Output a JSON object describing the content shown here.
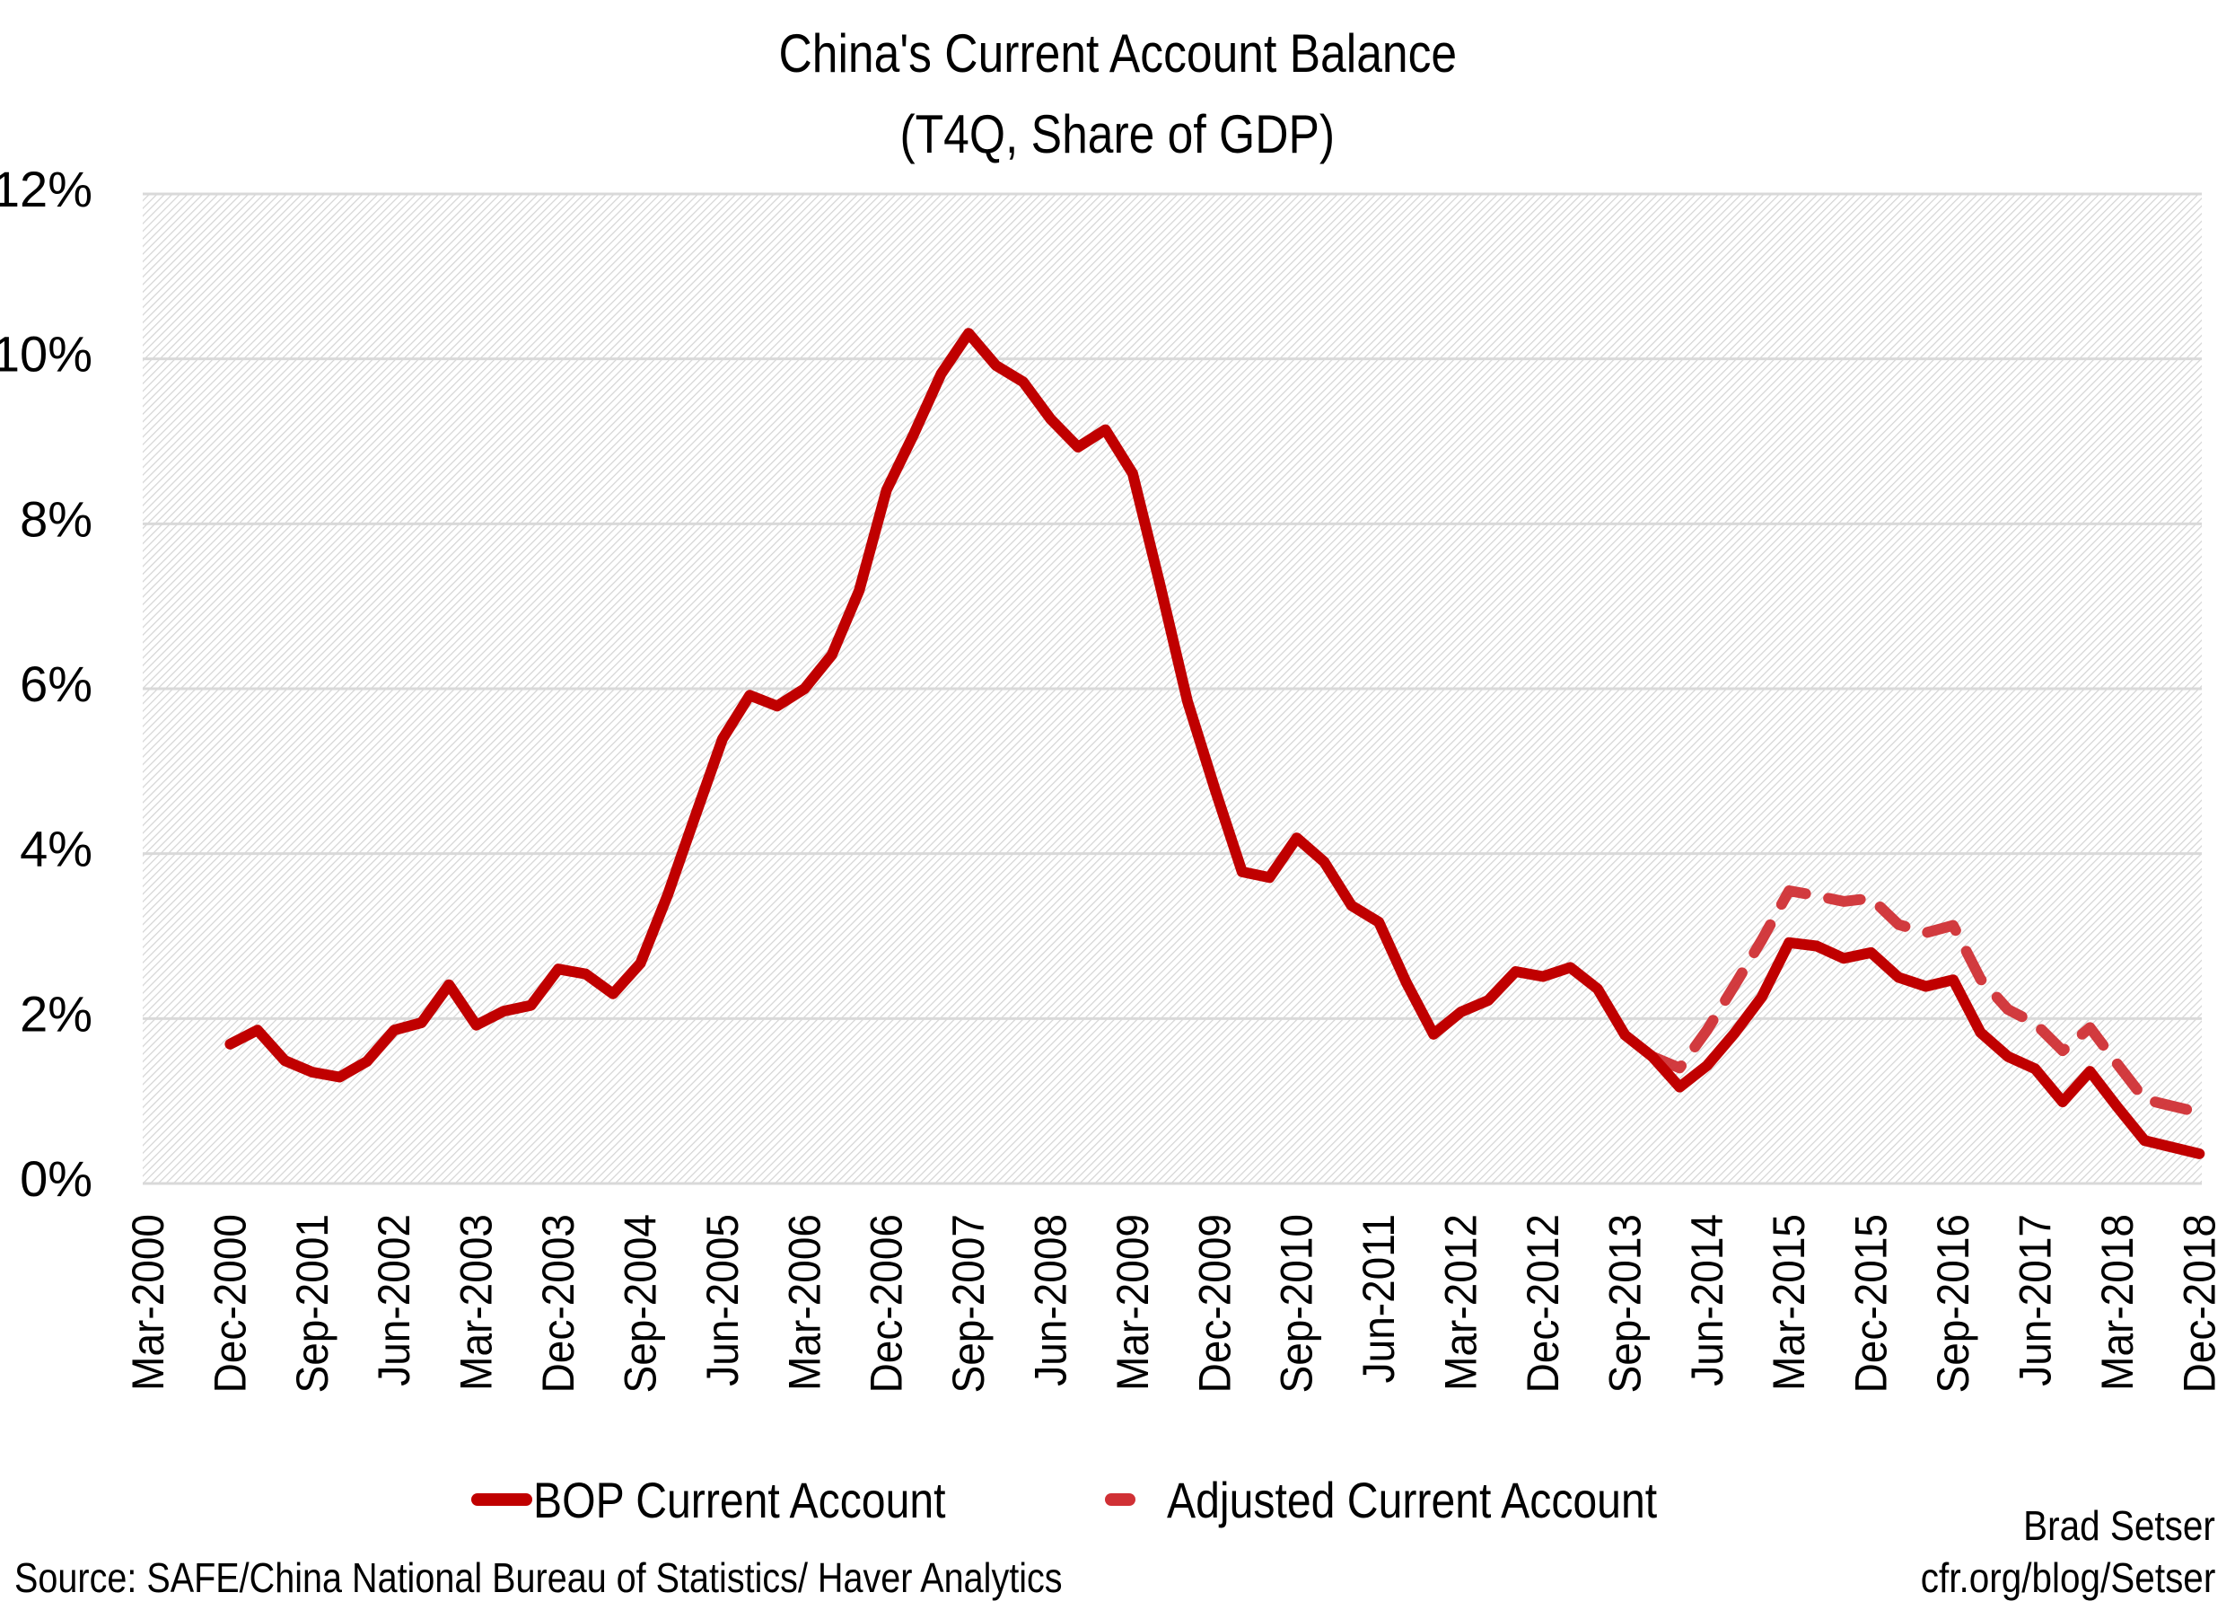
{
  "title": {
    "line1": "China's Current Account Balance",
    "line2": "(T4Q, Share of GDP)"
  },
  "legend": {
    "items": [
      {
        "label": "BOP Current Account",
        "style": "solid",
        "color": "#C00000"
      },
      {
        "label": "Adjusted Current Account",
        "style": "dashed",
        "color": "#D03035"
      }
    ]
  },
  "footer": {
    "source": "Source: SAFE/China National Bureau of Statistics/ Haver Analytics",
    "author": "Brad Setser",
    "url": "cfr.org/blog/Setser"
  },
  "colors": {
    "bop": "#C00000",
    "adjusted": "#D03035",
    "gridline": "#D9D9D9",
    "hatch": "#D9D9D9"
  },
  "chart_data": {
    "type": "line",
    "title": "China's Current Account Balance (T4Q, Share of GDP)",
    "xlabel": "",
    "ylabel": "",
    "ylim": [
      0,
      12
    ],
    "yticks": [
      "0%",
      "2%",
      "4%",
      "6%",
      "8%",
      "10%",
      "12%"
    ],
    "ytick_values": [
      0,
      2,
      4,
      6,
      8,
      10,
      12
    ],
    "grid": true,
    "legend_position": "bottom",
    "x_tick_labels": [
      "Mar-2000",
      "Dec-2000",
      "Sep-2001",
      "Jun-2002",
      "Mar-2003",
      "Dec-2003",
      "Sep-2004",
      "Jun-2005",
      "Mar-2006",
      "Dec-2006",
      "Sep-2007",
      "Jun-2008",
      "Mar-2009",
      "Dec-2009",
      "Sep-2010",
      "Jun-2011",
      "Mar-2012",
      "Dec-2012",
      "Sep-2013",
      "Jun-2014",
      "Mar-2015",
      "Dec-2015",
      "Sep-2016",
      "Jun-2017",
      "Mar-2018",
      "Dec-2018"
    ],
    "x_tick_every": 3,
    "categories": [
      "Mar-2000",
      "Jun-2000",
      "Sep-2000",
      "Dec-2000",
      "Mar-2001",
      "Jun-2001",
      "Sep-2001",
      "Dec-2001",
      "Mar-2002",
      "Jun-2002",
      "Sep-2002",
      "Dec-2002",
      "Mar-2003",
      "Jun-2003",
      "Sep-2003",
      "Dec-2003",
      "Mar-2004",
      "Jun-2004",
      "Sep-2004",
      "Dec-2004",
      "Mar-2005",
      "Jun-2005",
      "Sep-2005",
      "Dec-2005",
      "Mar-2006",
      "Jun-2006",
      "Sep-2006",
      "Dec-2006",
      "Mar-2007",
      "Jun-2007",
      "Sep-2007",
      "Dec-2007",
      "Mar-2008",
      "Jun-2008",
      "Sep-2008",
      "Dec-2008",
      "Mar-2009",
      "Jun-2009",
      "Sep-2009",
      "Dec-2009",
      "Mar-2010",
      "Jun-2010",
      "Sep-2010",
      "Dec-2010",
      "Mar-2011",
      "Jun-2011",
      "Sep-2011",
      "Dec-2011",
      "Mar-2012",
      "Jun-2012",
      "Sep-2012",
      "Dec-2012",
      "Mar-2013",
      "Jun-2013",
      "Sep-2013",
      "Dec-2013",
      "Mar-2014",
      "Jun-2014",
      "Sep-2014",
      "Dec-2014",
      "Mar-2015",
      "Jun-2015",
      "Sep-2015",
      "Dec-2015",
      "Mar-2016",
      "Jun-2016",
      "Sep-2016",
      "Dec-2016",
      "Mar-2017",
      "Jun-2017",
      "Sep-2017",
      "Dec-2017",
      "Mar-2018",
      "Jun-2018",
      "Sep-2018",
      "Dec-2018"
    ],
    "series": [
      {
        "name": "BOP Current Account",
        "style": "solid",
        "values": [
          null,
          null,
          null,
          1.69,
          1.86,
          1.49,
          1.35,
          1.29,
          1.48,
          1.86,
          1.95,
          2.41,
          1.92,
          2.09,
          2.16,
          2.6,
          2.54,
          2.3,
          2.67,
          3.5,
          4.45,
          5.39,
          5.92,
          5.79,
          6.0,
          6.41,
          7.19,
          8.41,
          9.09,
          9.82,
          10.31,
          9.92,
          9.72,
          9.27,
          8.93,
          9.14,
          8.61,
          7.26,
          5.85,
          4.79,
          3.78,
          3.71,
          4.19,
          3.9,
          3.37,
          3.17,
          2.44,
          1.81,
          2.08,
          2.22,
          2.57,
          2.51,
          2.62,
          2.36,
          1.8,
          1.54,
          1.17,
          1.43,
          1.82,
          2.26,
          2.92,
          2.88,
          2.73,
          2.8,
          2.5,
          2.39,
          2.47,
          1.83,
          1.54,
          1.39,
          0.99,
          1.36,
          0.93,
          0.52,
          0.44,
          0.36
        ]
      },
      {
        "name": "Adjusted Current Account",
        "style": "dashed",
        "values": [
          null,
          null,
          null,
          null,
          null,
          null,
          null,
          null,
          null,
          null,
          null,
          null,
          null,
          null,
          null,
          null,
          null,
          null,
          null,
          null,
          null,
          null,
          null,
          null,
          null,
          null,
          null,
          null,
          null,
          null,
          null,
          null,
          null,
          null,
          null,
          null,
          null,
          null,
          null,
          null,
          null,
          null,
          null,
          null,
          null,
          null,
          null,
          null,
          null,
          null,
          null,
          null,
          null,
          null,
          null,
          1.54,
          1.4,
          1.86,
          2.4,
          2.95,
          3.55,
          3.49,
          3.42,
          3.46,
          3.14,
          3.04,
          3.13,
          2.48,
          2.11,
          1.94,
          1.61,
          1.89,
          1.45,
          1.02,
          0.94,
          0.86
        ]
      }
    ]
  }
}
